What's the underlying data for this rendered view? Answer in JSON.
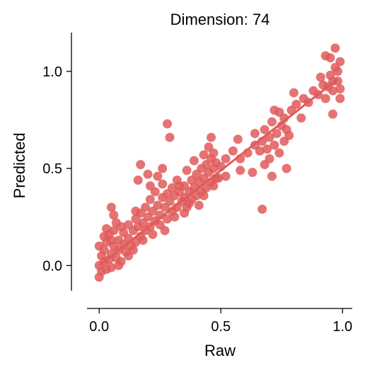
{
  "chart_data": {
    "type": "scatter",
    "title": "Dimension: 74",
    "xlabel": "Raw",
    "ylabel": "Predicted",
    "xlim": [
      -0.05,
      1.04
    ],
    "ylim": [
      -0.13,
      1.2
    ],
    "x_ticks": [
      {
        "value": 0.0,
        "label": "0.0"
      },
      {
        "value": 0.5,
        "label": "0.5"
      },
      {
        "value": 1.0,
        "label": "1.0"
      }
    ],
    "y_ticks": [
      {
        "value": 0.0,
        "label": "0.0"
      },
      {
        "value": 0.5,
        "label": "0.5"
      },
      {
        "value": 1.0,
        "label": "1.0"
      }
    ],
    "grid": false,
    "legend": "none",
    "point_color": "#e05a5a",
    "trend_line": {
      "x": [
        0.0,
        0.98
      ],
      "y": [
        0.0,
        0.96
      ]
    },
    "series": [
      {
        "points": [
          [
            0.0,
            -0.06
          ],
          [
            0.01,
            -0.03
          ],
          [
            0.0,
            0.0
          ],
          [
            0.02,
            0.02
          ],
          [
            0.01,
            0.05
          ],
          [
            0.03,
            -0.02
          ],
          [
            0.02,
            0.08
          ],
          [
            0.04,
            0.03
          ],
          [
            0.0,
            0.1
          ],
          [
            0.03,
            0.12
          ],
          [
            0.05,
            0.06
          ],
          [
            0.05,
            -0.01
          ],
          [
            0.06,
            0.1
          ],
          [
            0.07,
            0.04
          ],
          [
            0.04,
            0.16
          ],
          [
            0.06,
            0.18
          ],
          [
            0.08,
            0.13
          ],
          [
            0.08,
            0.08
          ],
          [
            0.09,
            0.02
          ],
          [
            0.1,
            0.11
          ],
          [
            0.1,
            0.17
          ],
          [
            0.11,
            0.07
          ],
          [
            0.12,
            0.14
          ],
          [
            0.12,
            0.21
          ],
          [
            0.13,
            0.1
          ],
          [
            0.05,
            0.3
          ],
          [
            0.07,
            0.22
          ],
          [
            0.14,
            0.18
          ],
          [
            0.15,
            0.12
          ],
          [
            0.15,
            0.24
          ],
          [
            0.16,
            0.2
          ],
          [
            0.17,
            0.15
          ],
          [
            0.17,
            0.27
          ],
          [
            0.18,
            0.22
          ],
          [
            0.19,
            0.18
          ],
          [
            0.19,
            0.3
          ],
          [
            0.2,
            0.25
          ],
          [
            0.21,
            0.2
          ],
          [
            0.21,
            0.34
          ],
          [
            0.22,
            0.28
          ],
          [
            0.23,
            0.23
          ],
          [
            0.23,
            0.38
          ],
          [
            0.24,
            0.31
          ],
          [
            0.25,
            0.26
          ],
          [
            0.26,
            0.35
          ],
          [
            0.26,
            0.42
          ],
          [
            0.27,
            0.3
          ],
          [
            0.28,
            0.37
          ],
          [
            0.28,
            0.24
          ],
          [
            0.29,
            0.33
          ],
          [
            0.3,
            0.4
          ],
          [
            0.3,
            0.28
          ],
          [
            0.31,
            0.36
          ],
          [
            0.32,
            0.3
          ],
          [
            0.32,
            0.44
          ],
          [
            0.33,
            0.38
          ],
          [
            0.34,
            0.33
          ],
          [
            0.35,
            0.41
          ],
          [
            0.35,
            0.35
          ],
          [
            0.36,
            0.3
          ],
          [
            0.37,
            0.38
          ],
          [
            0.38,
            0.44
          ],
          [
            0.38,
            0.34
          ],
          [
            0.39,
            0.4
          ],
          [
            0.4,
            0.47
          ],
          [
            0.4,
            0.36
          ],
          [
            0.41,
            0.43
          ],
          [
            0.42,
            0.5
          ],
          [
            0.42,
            0.38
          ],
          [
            0.43,
            0.45
          ],
          [
            0.44,
            0.52
          ],
          [
            0.44,
            0.4
          ],
          [
            0.45,
            0.48
          ],
          [
            0.46,
            0.55
          ],
          [
            0.46,
            0.43
          ],
          [
            0.47,
            0.5
          ],
          [
            0.47,
            0.58
          ],
          [
            0.48,
            0.45
          ],
          [
            0.48,
            0.53
          ],
          [
            0.45,
            0.61
          ],
          [
            0.46,
            0.66
          ],
          [
            0.28,
            0.73
          ],
          [
            0.29,
            0.66
          ],
          [
            0.2,
            0.47
          ],
          [
            0.24,
            0.46
          ],
          [
            0.16,
            0.44
          ],
          [
            0.17,
            0.52
          ],
          [
            0.33,
            0.41
          ],
          [
            0.5,
            0.51
          ],
          [
            0.52,
            0.46
          ],
          [
            0.52,
            0.55
          ],
          [
            0.55,
            0.59
          ],
          [
            0.58,
            0.55
          ],
          [
            0.61,
            0.58
          ],
          [
            0.64,
            0.62
          ],
          [
            0.66,
            0.59
          ],
          [
            0.67,
            0.64
          ],
          [
            0.68,
            0.7
          ],
          [
            0.69,
            0.6
          ],
          [
            0.7,
            0.66
          ],
          [
            0.7,
            0.55
          ],
          [
            0.71,
            0.74
          ],
          [
            0.72,
            0.62
          ],
          [
            0.73,
            0.68
          ],
          [
            0.74,
            0.58
          ],
          [
            0.75,
            0.72
          ],
          [
            0.76,
            0.64
          ],
          [
            0.77,
            0.7
          ],
          [
            0.77,
            0.5
          ],
          [
            0.71,
            0.46
          ],
          [
            0.67,
            0.29
          ],
          [
            0.58,
            0.49
          ],
          [
            0.72,
            0.8
          ],
          [
            0.76,
            0.76
          ],
          [
            0.79,
            0.8
          ],
          [
            0.81,
            0.83
          ],
          [
            0.84,
            0.86
          ],
          [
            0.86,
            0.84
          ],
          [
            0.88,
            0.9
          ],
          [
            0.9,
            0.88
          ],
          [
            0.92,
            0.93
          ],
          [
            0.93,
            0.86
          ],
          [
            0.95,
            0.98
          ],
          [
            0.96,
            0.9
          ],
          [
            0.97,
            1.02
          ],
          [
            0.98,
            0.95
          ],
          [
            0.99,
            1.05
          ],
          [
            0.97,
            1.12
          ],
          [
            0.96,
            0.78
          ],
          [
            0.99,
            0.86
          ],
          [
            0.95,
            1.07
          ],
          [
            0.98,
            1.0
          ],
          [
            0.94,
            0.92
          ],
          [
            0.83,
            0.76
          ],
          [
            0.8,
            0.89
          ],
          [
            0.63,
            0.48
          ],
          [
            0.57,
            0.65
          ],
          [
            0.05,
            0.13
          ],
          [
            0.02,
            0.15
          ],
          [
            0.08,
            0.0
          ],
          [
            0.12,
            0.05
          ],
          [
            0.14,
            0.08
          ],
          [
            0.18,
            0.13
          ],
          [
            0.22,
            0.16
          ],
          [
            0.25,
            0.21
          ],
          [
            0.27,
            0.18
          ],
          [
            0.31,
            0.25
          ],
          [
            0.35,
            0.27
          ],
          [
            0.37,
            0.32
          ],
          [
            0.41,
            0.31
          ],
          [
            0.43,
            0.36
          ],
          [
            0.47,
            0.41
          ],
          [
            0.49,
            0.45
          ],
          [
            0.21,
            0.41
          ],
          [
            0.26,
            0.5
          ],
          [
            0.36,
            0.49
          ],
          [
            0.39,
            0.54
          ],
          [
            0.43,
            0.57
          ],
          [
            0.64,
            0.68
          ],
          [
            0.68,
            0.52
          ],
          [
            0.74,
            0.79
          ],
          [
            0.78,
            0.67
          ],
          [
            0.91,
            0.97
          ],
          [
            0.93,
            1.08
          ],
          [
            0.96,
            0.95
          ],
          [
            0.99,
            0.91
          ],
          [
            0.15,
            0.28
          ],
          [
            0.09,
            0.2
          ],
          [
            0.03,
            0.19
          ],
          [
            0.06,
            0.26
          ]
        ]
      }
    ]
  }
}
